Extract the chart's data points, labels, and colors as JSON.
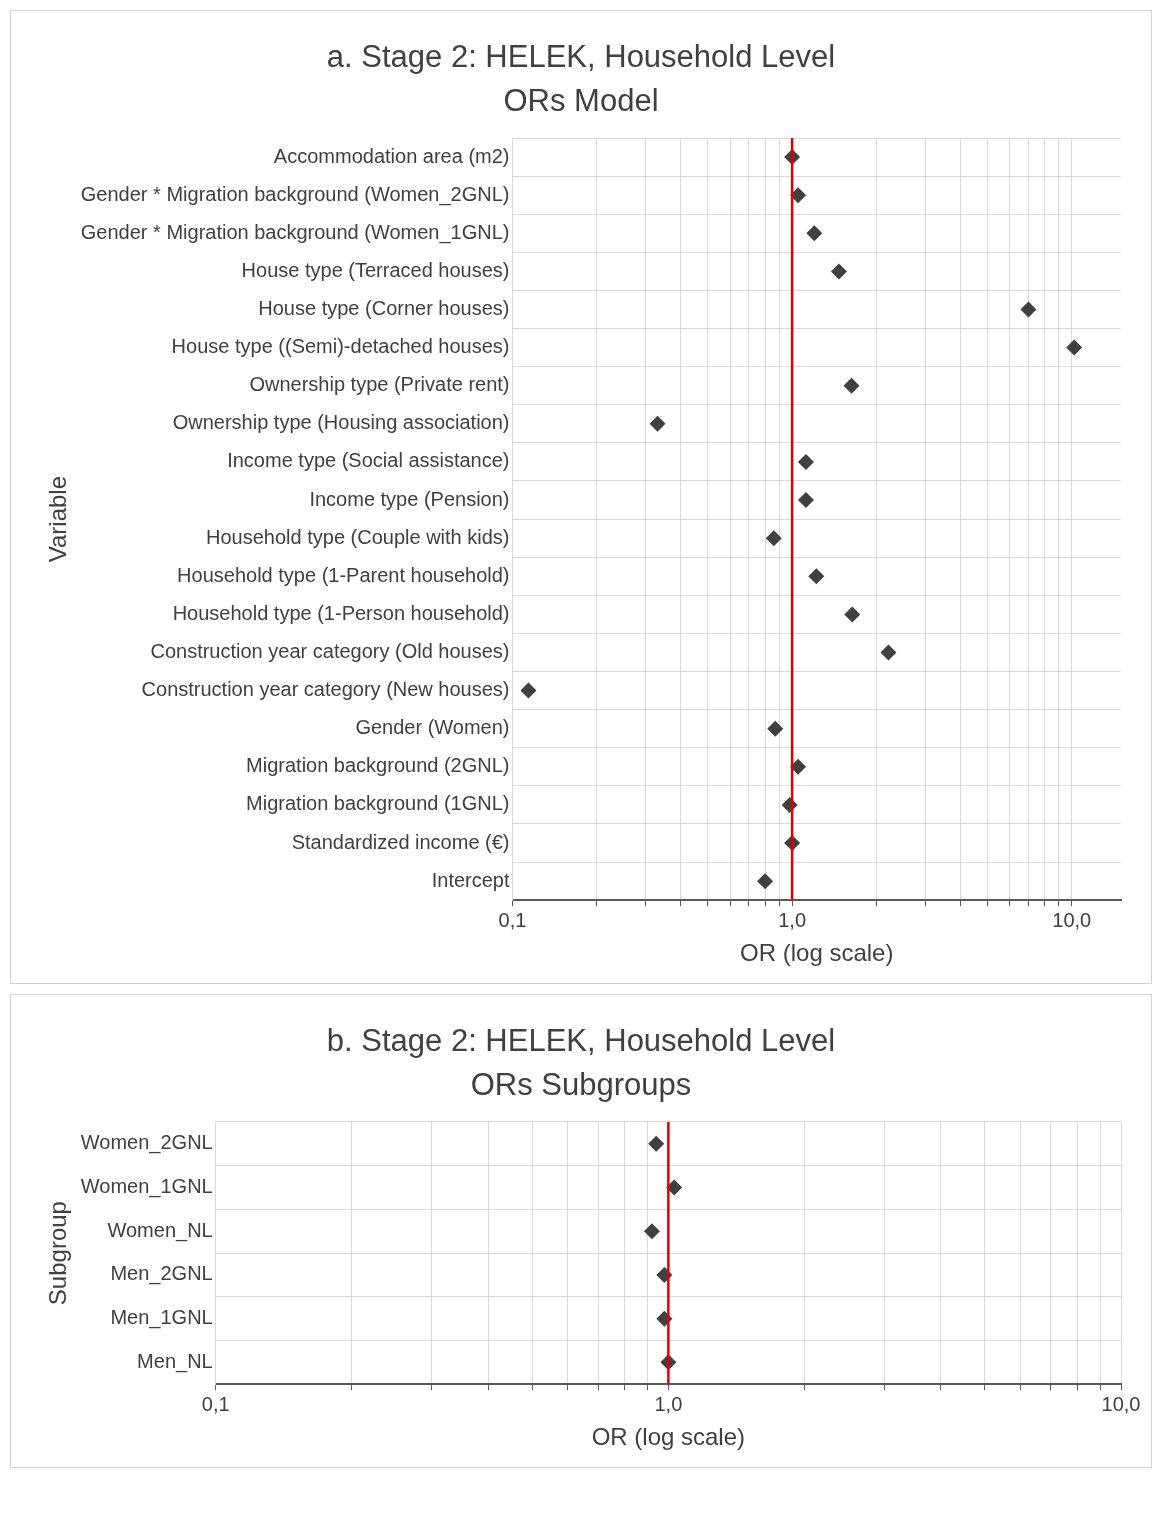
{
  "chart_data": [
    {
      "type": "scatter",
      "orientation": "horizontal",
      "title": "a. Stage 2: HELEK, Household Level",
      "subtitle": "ORs Model",
      "xlabel": "OR (log scale)",
      "ylabel": "Variable",
      "log": "x",
      "grid": true,
      "legend": false,
      "marker": "diamond",
      "categories": [
        "Accommodation area (m2)",
        "Gender * Migration background (Women_2GNL)",
        "Gender * Migration background (Women_1GNL)",
        "House type (Terraced houses)",
        "House type (Corner houses)",
        "House type ((Semi)-detached houses)",
        "Ownership type (Private rent)",
        "Ownership type (Housing association)",
        "Income type (Social assistance)",
        "Income type (Pension)",
        "Household type (Couple with kids)",
        "Household type (1-Parent household)",
        "Household type (1-Person household)",
        "Construction year category (Old houses)",
        "Construction year category (New houses)",
        "Gender (Women)",
        "Migration background (2GNL)",
        "Migration background (1GNL)",
        "Standardized income (€)",
        "Intercept"
      ],
      "series": [
        {
          "color": "#404040",
          "values": [
            1.0,
            1.05,
            1.2,
            1.47,
            7.0,
            10.2,
            1.63,
            0.33,
            1.12,
            1.12,
            0.86,
            1.22,
            1.64,
            2.21,
            0.114,
            0.87,
            1.05,
            0.98,
            1.0,
            0.8
          ]
        }
      ],
      "xlim": [
        0.1,
        15
      ],
      "xticks": [
        {
          "value": 0.1,
          "label": "0,1"
        },
        {
          "value": 0.2,
          "label": null
        },
        {
          "value": 0.3,
          "label": null
        },
        {
          "value": 0.4,
          "label": null
        },
        {
          "value": 0.5,
          "label": null
        },
        {
          "value": 0.6,
          "label": null
        },
        {
          "value": 0.7,
          "label": null
        },
        {
          "value": 0.8,
          "label": null
        },
        {
          "value": 0.9,
          "label": null
        },
        {
          "value": 1,
          "label": "1,0"
        },
        {
          "value": 2,
          "label": null
        },
        {
          "value": 3,
          "label": null
        },
        {
          "value": 4,
          "label": null
        },
        {
          "value": 5,
          "label": null
        },
        {
          "value": 6,
          "label": null
        },
        {
          "value": 7,
          "label": null
        },
        {
          "value": 8,
          "label": null
        },
        {
          "value": 9,
          "label": null
        },
        {
          "value": 10,
          "label": "10,0"
        }
      ],
      "ref_lines": [
        {
          "axis": "x",
          "value": 1,
          "color": "#e00000"
        }
      ]
    },
    {
      "type": "scatter",
      "orientation": "horizontal",
      "title": "b. Stage 2: HELEK, Household Level",
      "subtitle": "ORs Subgroups",
      "xlabel": "OR (log scale)",
      "ylabel": "Subgroup",
      "log": "x",
      "grid": true,
      "legend": false,
      "marker": "diamond",
      "categories": [
        "Women_2GNL",
        "Women_1GNL",
        "Women_NL",
        "Men_2GNL",
        "Men_1GNL",
        "Men_NL"
      ],
      "series": [
        {
          "color": "#404040",
          "values": [
            0.94,
            1.03,
            0.92,
            0.98,
            0.98,
            1.0
          ]
        }
      ],
      "xlim": [
        0.1,
        10
      ],
      "xticks": [
        {
          "value": 0.1,
          "label": "0,1"
        },
        {
          "value": 0.2,
          "label": null
        },
        {
          "value": 0.3,
          "label": null
        },
        {
          "value": 0.4,
          "label": null
        },
        {
          "value": 0.5,
          "label": null
        },
        {
          "value": 0.6,
          "label": null
        },
        {
          "value": 0.7,
          "label": null
        },
        {
          "value": 0.8,
          "label": null
        },
        {
          "value": 0.9,
          "label": null
        },
        {
          "value": 1,
          "label": "1,0"
        },
        {
          "value": 2,
          "label": null
        },
        {
          "value": 3,
          "label": null
        },
        {
          "value": 4,
          "label": null
        },
        {
          "value": 5,
          "label": null
        },
        {
          "value": 6,
          "label": null
        },
        {
          "value": 7,
          "label": null
        },
        {
          "value": 8,
          "label": null
        },
        {
          "value": 9,
          "label": null
        },
        {
          "value": 10,
          "label": "10,0"
        }
      ],
      "ref_lines": [
        {
          "axis": "x",
          "value": 1,
          "color": "#e00000"
        }
      ]
    }
  ]
}
